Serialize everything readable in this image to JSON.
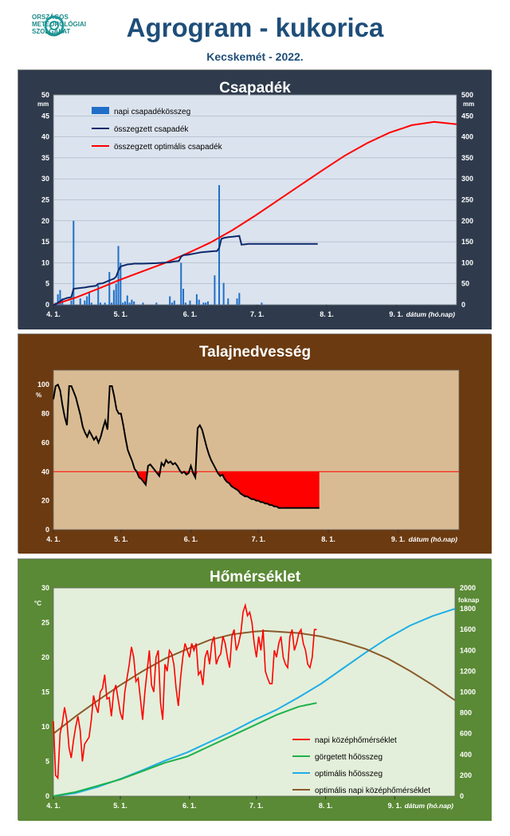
{
  "header": {
    "logo_lines": [
      "ORSZÁGOS",
      "METEOROLÓGIAI",
      "SZOLGÁLAT"
    ],
    "title": "Agrogram - kukorica",
    "subtitle": "Kecskemét - 2022."
  },
  "colors": {
    "precip_panel": "#2f3b4c",
    "precip_plot": "#dbe3ee",
    "soil_panel": "#6b3a10",
    "soil_plot": "#d9bb93",
    "temp_panel": "#5a8a35",
    "temp_plot": "#e3efda",
    "precip_bar": "#1f6fc8",
    "cum_precip": "#0d2a6b",
    "opt_red": "#ff0000",
    "heat_sum": "#1fb14a",
    "opt_heat": "#1faee6",
    "opt_temp": "#8b5a2b"
  },
  "chart_data": [
    {
      "type": "bar",
      "title": "Csapadék",
      "ylabel_left": "mm",
      "ylabel_right": "mm",
      "xlabel": "dátum (hó.nap)",
      "x_ticks": [
        "4. 1.",
        "5. 1.",
        "6. 1.",
        "7. 1.",
        "8. 1.",
        "9. 1."
      ],
      "x_tick_days": [
        0,
        30,
        61,
        91,
        122,
        153
      ],
      "x_range": [
        0,
        180
      ],
      "ylim_left": [
        0,
        50
      ],
      "ylim_right": [
        0,
        500
      ],
      "yticks_left": [
        "0",
        "5",
        "10",
        "15",
        "20",
        "25",
        "30",
        "35",
        "40",
        "45",
        "50"
      ],
      "yticks_right": [
        "0",
        "50",
        "100",
        "150",
        "200",
        "250",
        "300",
        "350",
        "400",
        "450",
        "500"
      ],
      "grid": true,
      "legend": [
        "napi csapadékösszeg",
        "összegzett csapadék",
        "összegzett optimális  csapadék"
      ],
      "series": [
        {
          "name": "napi csapadékösszeg",
          "axis": "left",
          "x": [
            1,
            2,
            3,
            4,
            8,
            9,
            12,
            14,
            15,
            16,
            17,
            20,
            21,
            23,
            25,
            26,
            27,
            28,
            29,
            30,
            31,
            32,
            33,
            34,
            35,
            36,
            40,
            46,
            52,
            53,
            54,
            57,
            58,
            59,
            61,
            64,
            65,
            67,
            68,
            69,
            72,
            74,
            76,
            78,
            82,
            83,
            93
          ],
          "values": [
            0.5,
            2.5,
            3.5,
            1.5,
            1,
            20,
            1.5,
            1,
            2,
            3,
            0.5,
            4.7,
            0.5,
            0.5,
            7.8,
            0.5,
            3.5,
            5,
            14,
            10,
            0.5,
            0.8,
            2.2,
            0.5,
            1.2,
            0.8,
            0.5,
            0.5,
            2,
            0.5,
            1,
            10,
            3.8,
            0.5,
            1,
            2.5,
            1.2,
            0.5,
            0.5,
            0.8,
            7,
            28.5,
            5.2,
            1.5,
            1.5,
            2.8,
            0.5
          ]
        },
        {
          "name": "összegzett csapadék",
          "axis": "right",
          "x": [
            0,
            1,
            2,
            4,
            6,
            8,
            9,
            12,
            14,
            16,
            19,
            20,
            22,
            25,
            27,
            28,
            29,
            30,
            33,
            35,
            36,
            40,
            46,
            52,
            54,
            56,
            57,
            58,
            60,
            64,
            66,
            68,
            70,
            72,
            73,
            74,
            75,
            76,
            78,
            80,
            83,
            84,
            87,
            93,
            100,
            110,
            118
          ],
          "values": [
            0,
            1,
            5,
            12,
            16,
            18,
            38,
            40,
            41,
            43,
            45,
            50,
            51,
            58,
            62,
            67,
            81,
            91,
            96,
            97,
            98,
            98,
            99,
            101,
            103,
            104,
            114,
            118,
            119,
            123,
            125,
            126,
            127,
            128,
            128,
            135,
            157,
            159,
            161,
            162,
            164,
            143,
            145,
            145,
            145,
            145,
            145
          ]
        },
        {
          "name": "összegzett optimális  csapadék",
          "axis": "right",
          "x": [
            0,
            10,
            20,
            30,
            40,
            50,
            60,
            70,
            80,
            90,
            100,
            110,
            120,
            130,
            140,
            150,
            160,
            170,
            175,
            180
          ],
          "values": [
            0,
            17,
            38,
            60,
            80,
            100,
            123,
            148,
            178,
            212,
            248,
            284,
            320,
            355,
            385,
            410,
            428,
            436,
            433,
            430
          ]
        }
      ]
    },
    {
      "type": "area",
      "title": "Talajnedvesség",
      "ylabel": "%",
      "xlabel": "dátum (hó.nap)",
      "x_ticks": [
        "4. 1.",
        "5. 1.",
        "6. 1.",
        "7. 1.",
        "8. 1.",
        "9. 1."
      ],
      "x_tick_days": [
        0,
        30,
        61,
        91,
        122,
        153
      ],
      "x_range": [
        0,
        180
      ],
      "ylim": [
        0,
        110
      ],
      "yticks": [
        "0",
        "20",
        "40",
        "60",
        "80",
        "100"
      ],
      "threshold": 40,
      "grid": false,
      "series": [
        {
          "name": "",
          "x": [
            0,
            1,
            2,
            3,
            4,
            5,
            6,
            7,
            8,
            9,
            10,
            11,
            12,
            13,
            14,
            15,
            16,
            17,
            18,
            19,
            20,
            21,
            22,
            23,
            24,
            25,
            26,
            27,
            28,
            29,
            30,
            31,
            32,
            33,
            34,
            35,
            36,
            37,
            38,
            39,
            40,
            41,
            42,
            43,
            44,
            45,
            46,
            47,
            48,
            49,
            50,
            51,
            52,
            53,
            54,
            55,
            56,
            57,
            58,
            59,
            60,
            61,
            62,
            63,
            64,
            65,
            66,
            67,
            68,
            69,
            70,
            71,
            72,
            73,
            74,
            75,
            76,
            77,
            78,
            79,
            80,
            81,
            82,
            83,
            84,
            85,
            86,
            87,
            88,
            89,
            90,
            91,
            92,
            93,
            94,
            95,
            96,
            97,
            98,
            99,
            100,
            101,
            102,
            103,
            104,
            105,
            106,
            107,
            108,
            109,
            110,
            111,
            112,
            113,
            114,
            115,
            116,
            117,
            118
          ],
          "values": [
            90,
            99,
            100,
            96,
            86,
            78,
            72,
            99,
            99,
            95,
            91,
            85,
            79,
            71,
            67,
            64,
            68,
            65,
            62,
            64,
            60,
            64,
            70,
            75,
            69,
            99,
            99,
            92,
            83,
            80,
            80,
            72,
            63,
            55,
            51,
            47,
            42,
            40,
            36,
            35,
            33,
            31,
            44,
            45,
            43,
            41,
            39,
            37,
            46,
            44,
            48,
            46,
            47,
            45,
            46,
            44,
            41,
            39,
            40,
            38,
            39,
            44,
            39,
            36,
            70,
            72,
            69,
            63,
            57,
            52,
            48,
            45,
            42,
            39,
            37,
            38,
            35,
            33,
            32,
            30,
            29,
            28,
            27,
            25,
            24,
            23,
            23,
            22,
            21,
            21,
            20,
            20,
            19,
            19,
            18,
            18,
            17,
            17,
            16,
            16,
            15,
            15,
            15,
            15,
            15,
            15,
            15,
            15,
            15,
            15,
            15,
            15,
            15,
            15,
            15,
            15,
            15,
            15,
            15
          ]
        }
      ]
    },
    {
      "type": "line",
      "title": "Hőmérséklet",
      "ylabel_left": "°C",
      "ylabel_right": "foknap",
      "xlabel": "dátum (hó.nap)",
      "x_ticks": [
        "4. 1.",
        "5. 1.",
        "6. 1.",
        "7. 1.",
        "8. 1.",
        "9. 1."
      ],
      "x_tick_days": [
        0,
        30,
        61,
        91,
        122,
        153
      ],
      "x_range": [
        0,
        180
      ],
      "ylim_left": [
        0,
        30
      ],
      "ylim_right": [
        0,
        2000
      ],
      "yticks_left": [
        "0",
        "5",
        "10",
        "15",
        "20",
        "25",
        "30"
      ],
      "yticks_right": [
        "0",
        "200",
        "400",
        "600",
        "800",
        "1000",
        "1200",
        "1400",
        "1600",
        "1800",
        "2000"
      ],
      "grid": false,
      "legend": [
        "napi középhőmérséklet",
        "görgetett hőösszeg",
        "optimális hőösszeg",
        "optimális napi középhőmérséklet"
      ],
      "series": [
        {
          "name": "napi középhőmérséklet",
          "axis": "left",
          "x": [
            0,
            1,
            2,
            3,
            4,
            5,
            6,
            7,
            8,
            9,
            10,
            11,
            12,
            13,
            14,
            15,
            16,
            17,
            18,
            19,
            20,
            21,
            22,
            23,
            24,
            25,
            26,
            27,
            28,
            29,
            30,
            31,
            32,
            33,
            34,
            35,
            36,
            37,
            38,
            39,
            40,
            41,
            42,
            43,
            44,
            45,
            46,
            47,
            48,
            49,
            50,
            51,
            52,
            53,
            54,
            55,
            56,
            57,
            58,
            59,
            60,
            61,
            62,
            63,
            64,
            65,
            66,
            67,
            68,
            69,
            70,
            71,
            72,
            73,
            74,
            75,
            76,
            77,
            78,
            79,
            80,
            81,
            82,
            83,
            84,
            85,
            86,
            87,
            88,
            89,
            90,
            91,
            92,
            93,
            94,
            95,
            96,
            97,
            98,
            99,
            100,
            101,
            102,
            103,
            104,
            105,
            106,
            107,
            108,
            109,
            110,
            111,
            112,
            113,
            114,
            115,
            116,
            117,
            118
          ],
          "values": [
            10.8,
            3,
            2.6,
            9,
            10.5,
            12.8,
            11,
            7,
            5.5,
            8,
            10,
            11.5,
            9.5,
            5,
            7.5,
            8,
            8.5,
            11,
            14.5,
            13,
            12,
            15,
            15.5,
            17.5,
            14,
            14.2,
            11.5,
            15,
            16,
            14,
            12,
            11,
            15,
            17,
            19,
            21.5,
            20,
            16.5,
            17,
            14,
            11,
            15,
            18,
            21,
            16,
            15,
            20,
            21,
            13.5,
            11,
            19,
            18,
            21,
            20.5,
            19,
            15.5,
            13,
            17,
            20,
            22,
            21,
            20,
            22,
            21,
            22,
            17.5,
            18,
            16,
            20,
            21,
            19,
            22,
            23,
            19,
            20,
            20.5,
            23,
            22,
            20,
            18.5,
            23,
            24,
            21,
            22,
            23.5,
            26.5,
            27.5,
            26,
            26.5,
            25,
            22,
            20,
            23,
            21,
            24,
            18,
            17,
            16.2,
            16.2,
            21,
            20,
            22,
            23,
            20,
            19,
            18.5,
            23,
            24,
            21,
            22,
            23.5,
            24,
            22,
            21,
            19,
            18.5,
            20,
            24,
            24
          ]
        },
        {
          "name": "görgetett hőösszeg",
          "axis": "right",
          "x": [
            0,
            10,
            20,
            30,
            40,
            50,
            60,
            70,
            80,
            90,
            100,
            110,
            118
          ],
          "values": [
            0,
            40,
            100,
            160,
            240,
            320,
            380,
            480,
            580,
            680,
            780,
            860,
            895
          ]
        },
        {
          "name": "optimális hőösszeg",
          "axis": "right",
          "x": [
            0,
            10,
            20,
            30,
            40,
            50,
            60,
            70,
            80,
            90,
            100,
            110,
            120,
            130,
            140,
            150,
            160,
            170,
            180
          ],
          "values": [
            0,
            30,
            90,
            165,
            250,
            340,
            420,
            520,
            620,
            730,
            830,
            950,
            1080,
            1230,
            1380,
            1520,
            1640,
            1730,
            1800
          ]
        },
        {
          "name": "optimális napi középhőmérséklet",
          "axis": "left",
          "x": [
            0,
            10,
            20,
            30,
            40,
            50,
            60,
            70,
            80,
            90,
            95,
            100,
            110,
            120,
            130,
            140,
            150,
            160,
            170,
            180
          ],
          "values": [
            9,
            11.5,
            13.8,
            16,
            18,
            19.8,
            21.2,
            22.5,
            23.3,
            23.7,
            23.8,
            23.7,
            23.5,
            23,
            22.2,
            21.2,
            19.8,
            18,
            16,
            13.8
          ]
        }
      ]
    }
  ]
}
